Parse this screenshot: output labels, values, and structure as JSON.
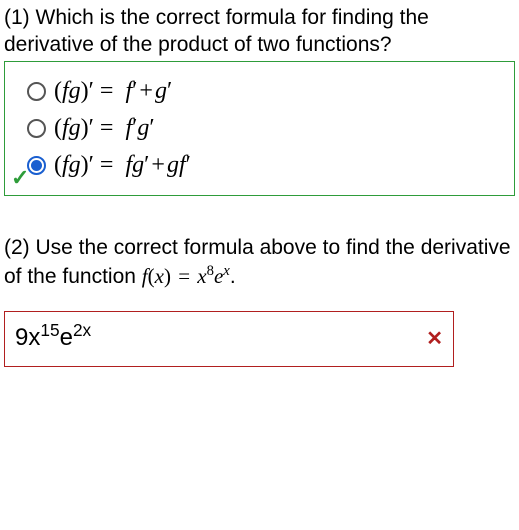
{
  "q1": {
    "prompt": "(1) Which is the correct formula for finding the derivative of the product of two functions?",
    "options": [
      {
        "html": "<span class='paren'>(</span>fg<span class='paren'>)</span><span class='prime'>′</span><span class='eq'>=</span> f<span class='prime'>′</span><span class='plus'>+</span>g<span class='prime'>′</span>",
        "selected": false
      },
      {
        "html": "<span class='paren'>(</span>fg<span class='paren'>)</span><span class='prime'>′</span><span class='eq'>=</span> f<span class='prime'>′</span>g<span class='prime'>′</span>",
        "selected": false
      },
      {
        "html": "<span class='paren'>(</span>fg<span class='paren'>)</span><span class='prime'>′</span><span class='eq'>=</span> fg<span class='prime'>′</span><span class='plus'>+</span>gf<span class='prime'>′</span>",
        "selected": true
      }
    ],
    "correct": true,
    "box_color": "#2e9c3a"
  },
  "q2": {
    "prompt_pre": "(2) Use the correct formula above to find the derivative of the function ",
    "func_html": "f<span class='paren'>(</span>x<span class='paren'>)</span> <span class='eq' style='padding:0 2px'>=</span> x<span class='sup'>8</span>e<span class='sup' style='font-style:italic'>x</span>",
    "prompt_post": ".",
    "answer_html": "9x<span class='exp'>15</span>e<span class='exp'>2x</span>",
    "correct": false,
    "box_color": "#b11f1f"
  }
}
